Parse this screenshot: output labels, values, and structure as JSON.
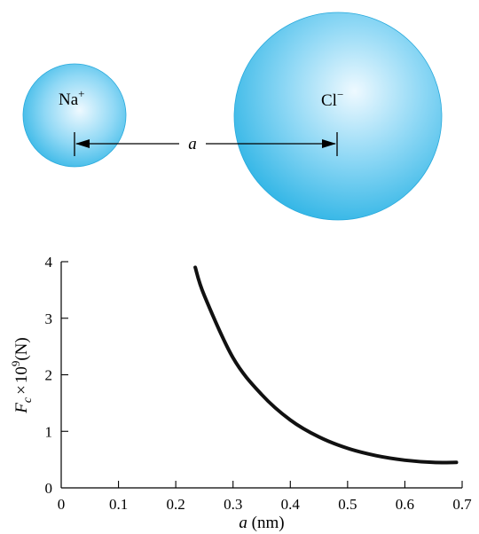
{
  "diagram": {
    "ions": [
      {
        "name": "Na",
        "charge": "+"
      },
      {
        "name": "Cl",
        "charge": "−"
      }
    ],
    "separation_label": "a"
  },
  "colors": {
    "ion_light": "#eef9ff",
    "ion_mid": "#8fd8f5",
    "ion_dark": "#33b6e6",
    "ion_edge": "#27a9dc",
    "curve": "#111111"
  },
  "chart_data": {
    "type": "line",
    "title": "",
    "xlabel": {
      "var": "a",
      "unit": "(nm)"
    },
    "ylabel": {
      "var": "F",
      "sub": "c",
      "times": "×",
      "base": "10",
      "exp": "9",
      "unit": "(N)"
    },
    "xlim": [
      0,
      0.7
    ],
    "ylim": [
      0,
      4
    ],
    "xticks": [
      0,
      0.1,
      0.2,
      0.3,
      0.4,
      0.5,
      0.6,
      0.7
    ],
    "xtick_labels": [
      "0",
      "0.1",
      "0.2",
      "0.3",
      "0.4",
      "0.5",
      "0.6",
      "0.7"
    ],
    "yticks": [
      0,
      1,
      2,
      3,
      4
    ],
    "ytick_labels": [
      "0",
      "1",
      "2",
      "3",
      "4"
    ],
    "grid": false,
    "series": [
      {
        "x": [
          0.234,
          0.25,
          0.3,
          0.35,
          0.4,
          0.45,
          0.5,
          0.55,
          0.6,
          0.65,
          0.69
        ],
        "y": [
          3.9,
          3.4,
          2.3,
          1.65,
          1.2,
          0.9,
          0.7,
          0.57,
          0.49,
          0.45,
          0.45
        ]
      }
    ]
  }
}
